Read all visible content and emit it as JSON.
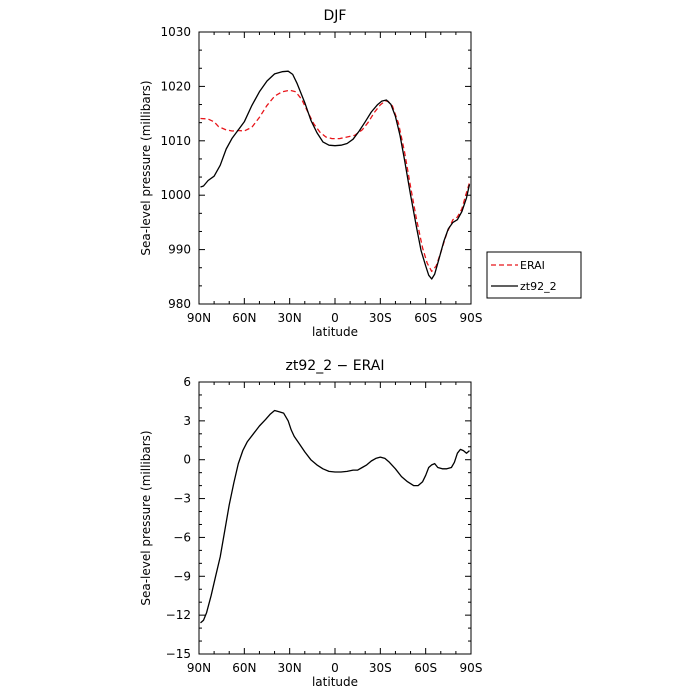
{
  "chart_data": [
    {
      "type": "line",
      "title": "DJF",
      "xlabel": "latitude",
      "ylabel": "Sea-level pressure (millibars)",
      "xlim": [
        90,
        -90
      ],
      "ylim": [
        980,
        1030
      ],
      "xticks": [
        90,
        60,
        30,
        0,
        -30,
        -60,
        -90
      ],
      "xtick_labels": [
        "90N",
        "60N",
        "30N",
        "0",
        "30S",
        "60S",
        "90S"
      ],
      "yticks": [
        980,
        990,
        1000,
        1010,
        1020,
        1030
      ],
      "ytick_labels": [
        "980",
        "990",
        "1000",
        "1010",
        "1020",
        "1030"
      ],
      "grid": false,
      "legend": "right-outside",
      "series": [
        {
          "name": "ERAI",
          "color": "#e8161b",
          "dash": true,
          "points": [
            [
              89,
              1014.1
            ],
            [
              84,
              1014.0
            ],
            [
              80,
              1013.5
            ],
            [
              77,
              1012.6
            ],
            [
              72,
              1012.0
            ],
            [
              68,
              1011.8
            ],
            [
              64,
              1011.9
            ],
            [
              60,
              1011.8
            ],
            [
              55,
              1012.5
            ],
            [
              50,
              1014.3
            ],
            [
              45,
              1016.5
            ],
            [
              40,
              1018.2
            ],
            [
              35,
              1019.0
            ],
            [
              30,
              1019.3
            ],
            [
              26,
              1019.0
            ],
            [
              22,
              1017.6
            ],
            [
              18,
              1015.3
            ],
            [
              14,
              1013.1
            ],
            [
              10,
              1011.6
            ],
            [
              6,
              1010.7
            ],
            [
              2,
              1010.4
            ],
            [
              -3,
              1010.4
            ],
            [
              -8,
              1010.7
            ],
            [
              -13,
              1011.0
            ],
            [
              -18,
              1012.0
            ],
            [
              -22,
              1013.4
            ],
            [
              -26,
              1015.2
            ],
            [
              -30,
              1016.6
            ],
            [
              -33,
              1017.3
            ],
            [
              -35,
              1017.3
            ],
            [
              -38,
              1016.4
            ],
            [
              -42,
              1013.2
            ],
            [
              -46,
              1008.0
            ],
            [
              -50,
              1001.5
            ],
            [
              -54,
              995.5
            ],
            [
              -58,
              990.3
            ],
            [
              -61,
              987.5
            ],
            [
              -64,
              986.0
            ],
            [
              -67,
              987.0
            ],
            [
              -70,
              989.5
            ],
            [
              -74,
              993.0
            ],
            [
              -78,
              995.5
            ],
            [
              -81,
              996.0
            ],
            [
              -84,
              997.5
            ],
            [
              -87,
              1000.5
            ],
            [
              -89,
              1002.3
            ]
          ]
        },
        {
          "name": "zt92_2",
          "color": "#000000",
          "dash": false,
          "points": [
            [
              89,
              1001.5
            ],
            [
              87,
              1001.7
            ],
            [
              84,
              1002.7
            ],
            [
              80,
              1003.5
            ],
            [
              76,
              1005.5
            ],
            [
              72,
              1008.5
            ],
            [
              68,
              1010.5
            ],
            [
              64,
              1012.0
            ],
            [
              60,
              1013.5
            ],
            [
              55,
              1016.5
            ],
            [
              50,
              1019.0
            ],
            [
              45,
              1021.0
            ],
            [
              40,
              1022.3
            ],
            [
              35,
              1022.7
            ],
            [
              31,
              1022.8
            ],
            [
              28,
              1022.2
            ],
            [
              25,
              1020.5
            ],
            [
              20,
              1017.0
            ],
            [
              16,
              1013.8
            ],
            [
              12,
              1011.5
            ],
            [
              8,
              1009.8
            ],
            [
              4,
              1009.2
            ],
            [
              0,
              1009.1
            ],
            [
              -4,
              1009.2
            ],
            [
              -8,
              1009.5
            ],
            [
              -12,
              1010.3
            ],
            [
              -16,
              1011.8
            ],
            [
              -20,
              1013.5
            ],
            [
              -24,
              1015.3
            ],
            [
              -28,
              1016.6
            ],
            [
              -31,
              1017.3
            ],
            [
              -34,
              1017.5
            ],
            [
              -37,
              1016.7
            ],
            [
              -40,
              1014.5
            ],
            [
              -43,
              1011.0
            ],
            [
              -46,
              1006.5
            ],
            [
              -50,
              1000.0
            ],
            [
              -54,
              994.0
            ],
            [
              -57,
              989.8
            ],
            [
              -60,
              987.0
            ],
            [
              -62,
              985.3
            ],
            [
              -64,
              984.6
            ],
            [
              -66,
              985.5
            ],
            [
              -69,
              988.5
            ],
            [
              -72,
              991.5
            ],
            [
              -75,
              993.8
            ],
            [
              -78,
              995.0
            ],
            [
              -81,
              995.5
            ],
            [
              -84,
              997.0
            ],
            [
              -87,
              999.5
            ],
            [
              -89,
              1002.0
            ]
          ]
        }
      ]
    },
    {
      "type": "line",
      "title": "zt92_2 − ERAI",
      "xlabel": "latitude",
      "ylabel": "Sea-level pressure (millibars)",
      "xlim": [
        90,
        -90
      ],
      "ylim": [
        -15,
        6
      ],
      "xticks": [
        90,
        60,
        30,
        0,
        -30,
        -60,
        -90
      ],
      "xtick_labels": [
        "90N",
        "60N",
        "30N",
        "0",
        "30S",
        "60S",
        "90S"
      ],
      "yticks": [
        -15,
        -12,
        -9,
        -6,
        -3,
        0,
        3,
        6
      ],
      "ytick_labels": [
        "−15",
        "−12",
        "−9",
        "−6",
        "−3",
        "0",
        "3",
        "6"
      ],
      "grid": false,
      "series": [
        {
          "color": "#000000",
          "dash": false,
          "points": [
            [
              89,
              -12.6
            ],
            [
              87,
              -12.4
            ],
            [
              85,
              -11.8
            ],
            [
              82,
              -10.5
            ],
            [
              79,
              -9.0
            ],
            [
              76,
              -7.5
            ],
            [
              73,
              -5.5
            ],
            [
              70,
              -3.5
            ],
            [
              67,
              -1.8
            ],
            [
              64,
              -0.3
            ],
            [
              61,
              0.7
            ],
            [
              58,
              1.4
            ],
            [
              54,
              2.0
            ],
            [
              50,
              2.6
            ],
            [
              46,
              3.1
            ],
            [
              43,
              3.5
            ],
            [
              40,
              3.8
            ],
            [
              37,
              3.7
            ],
            [
              34,
              3.6
            ],
            [
              31,
              3.0
            ],
            [
              29,
              2.3
            ],
            [
              27,
              1.8
            ],
            [
              24,
              1.3
            ],
            [
              20,
              0.6
            ],
            [
              16,
              0.0
            ],
            [
              12,
              -0.4
            ],
            [
              8,
              -0.7
            ],
            [
              4,
              -0.9
            ],
            [
              0,
              -0.95
            ],
            [
              -4,
              -0.95
            ],
            [
              -8,
              -0.9
            ],
            [
              -12,
              -0.8
            ],
            [
              -15,
              -0.8
            ],
            [
              -18,
              -0.6
            ],
            [
              -21,
              -0.4
            ],
            [
              -24,
              -0.1
            ],
            [
              -27,
              0.1
            ],
            [
              -30,
              0.2
            ],
            [
              -33,
              0.1
            ],
            [
              -36,
              -0.2
            ],
            [
              -40,
              -0.7
            ],
            [
              -44,
              -1.3
            ],
            [
              -48,
              -1.7
            ],
            [
              -52,
              -2.0
            ],
            [
              -55,
              -2.0
            ],
            [
              -58,
              -1.7
            ],
            [
              -60,
              -1.2
            ],
            [
              -62,
              -0.6
            ],
            [
              -64,
              -0.4
            ],
            [
              -66,
              -0.3
            ],
            [
              -68,
              -0.6
            ],
            [
              -71,
              -0.7
            ],
            [
              -74,
              -0.7
            ],
            [
              -77,
              -0.6
            ],
            [
              -79,
              -0.2
            ],
            [
              -81,
              0.5
            ],
            [
              -83,
              0.8
            ],
            [
              -85,
              0.7
            ],
            [
              -87,
              0.5
            ],
            [
              -89,
              0.7
            ]
          ]
        }
      ]
    }
  ]
}
